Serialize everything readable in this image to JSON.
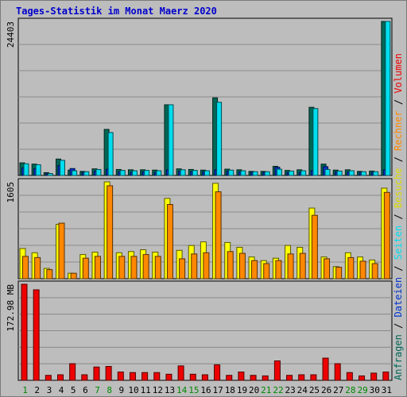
{
  "title": "Tages-Statistik im Monat Maerz 2020",
  "colors": {
    "background": "#bdbdbd",
    "title": "#0000cc",
    "anfragen": "#006655",
    "dateien": "#0033cc",
    "seiten": "#00ddee",
    "besuche": "#ffff00",
    "rechner": "#ff8800",
    "volumen": "#ee0000",
    "weekend_label": "#008800",
    "weekday_label": "#000000"
  },
  "chart_data": [
    {
      "type": "bar",
      "panel": "top",
      "ymax_label": "24403",
      "ylim": [
        0,
        24403
      ],
      "categories": [
        "1",
        "2",
        "3",
        "4",
        "5",
        "6",
        "7",
        "8",
        "9",
        "10",
        "11",
        "12",
        "13",
        "14",
        "15",
        "16",
        "17",
        "18",
        "19",
        "20",
        "21",
        "22",
        "23",
        "24",
        "25",
        "26",
        "27",
        "28",
        "29",
        "30",
        "31"
      ],
      "series": [
        {
          "name": "Anfragen",
          "values": [
            2000,
            1800,
            450,
            2600,
            850,
            650,
            1050,
            7300,
            950,
            900,
            900,
            850,
            11200,
            1050,
            950,
            850,
            12300,
            1000,
            900,
            650,
            650,
            1450,
            800,
            900,
            10800,
            1800,
            850,
            900,
            650,
            700,
            24403
          ]
        },
        {
          "name": "Dateien",
          "values": [
            1200,
            1100,
            300,
            1600,
            1100,
            500,
            700,
            1000,
            600,
            500,
            600,
            500,
            900,
            700,
            600,
            600,
            900,
            700,
            600,
            500,
            500,
            1300,
            500,
            500,
            800,
            1400,
            600,
            600,
            500,
            500,
            900
          ]
        },
        {
          "name": "Seiten",
          "values": [
            1850,
            1700,
            300,
            2400,
            750,
            600,
            950,
            6800,
            800,
            750,
            800,
            750,
            11200,
            900,
            800,
            750,
            11600,
            850,
            750,
            600,
            600,
            1000,
            700,
            750,
            10600,
            950,
            700,
            750,
            600,
            600,
            24403
          ]
        }
      ]
    },
    {
      "type": "bar",
      "panel": "middle",
      "ymax_label": "1605",
      "ylim": [
        0,
        1605
      ],
      "categories": [
        "1",
        "2",
        "3",
        "4",
        "5",
        "6",
        "7",
        "8",
        "9",
        "10",
        "11",
        "12",
        "13",
        "14",
        "15",
        "16",
        "17",
        "18",
        "19",
        "20",
        "21",
        "22",
        "23",
        "24",
        "25",
        "26",
        "27",
        "28",
        "29",
        "30",
        "31"
      ],
      "series": [
        {
          "name": "Besuche",
          "values": [
            500,
            430,
            170,
            900,
            90,
            400,
            440,
            1605,
            430,
            450,
            480,
            440,
            1330,
            470,
            550,
            610,
            1580,
            600,
            520,
            360,
            300,
            340,
            550,
            520,
            1170,
            360,
            200,
            430,
            360,
            310,
            1500
          ]
        },
        {
          "name": "Rechner",
          "values": [
            370,
            350,
            150,
            920,
            90,
            340,
            370,
            1540,
            370,
            370,
            400,
            370,
            1230,
            330,
            410,
            430,
            1440,
            450,
            420,
            300,
            250,
            300,
            410,
            420,
            1050,
            330,
            190,
            350,
            290,
            250,
            1430
          ]
        }
      ]
    },
    {
      "type": "bar",
      "panel": "bottom",
      "ymax_label": "172.98 MB",
      "ylim": [
        0,
        172.98
      ],
      "categories": [
        "1",
        "2",
        "3",
        "4",
        "5",
        "6",
        "7",
        "8",
        "9",
        "10",
        "11",
        "12",
        "13",
        "14",
        "15",
        "16",
        "17",
        "18",
        "19",
        "20",
        "21",
        "22",
        "23",
        "24",
        "25",
        "26",
        "27",
        "28",
        "29",
        "30",
        "31"
      ],
      "series": [
        {
          "name": "Volumen",
          "values": [
            172.98,
            163,
            9,
            10,
            30,
            10,
            24,
            25,
            15,
            14,
            14,
            14,
            11,
            26,
            11,
            10,
            28,
            9,
            15,
            9,
            8,
            35,
            9,
            10,
            10,
            40,
            30,
            14,
            8,
            13,
            15
          ]
        }
      ]
    }
  ],
  "legend": {
    "line1": [
      {
        "text": "Anfragen",
        "color": "#006655"
      },
      {
        "text": " / ",
        "color": "#000000"
      },
      {
        "text": "Dateien",
        "color": "#0033cc"
      },
      {
        "text": " / ",
        "color": "#000000"
      },
      {
        "text": "Seiten",
        "color": "#00ddee"
      },
      {
        "text": " / ",
        "color": "#000000"
      },
      {
        "text": "Besuche",
        "color": "#dddd00"
      },
      {
        "text": " / ",
        "color": "#000000"
      },
      {
        "text": "Rechner",
        "color": "#ff8800"
      },
      {
        "text": " / ",
        "color": "#000000"
      },
      {
        "text": "Volumen",
        "color": "#ee0000"
      }
    ]
  },
  "weekend_days": [
    "1",
    "7",
    "8",
    "14",
    "15",
    "21",
    "22",
    "28",
    "29"
  ]
}
